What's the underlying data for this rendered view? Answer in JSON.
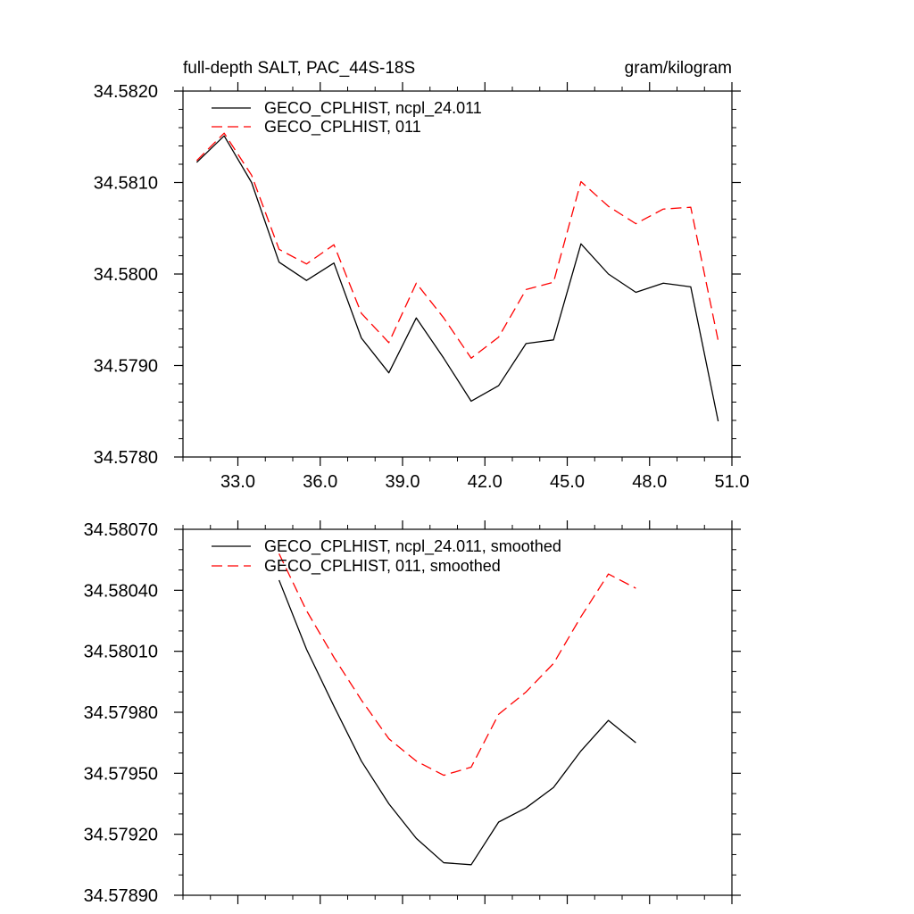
{
  "chart_data": [
    {
      "type": "line",
      "title_left": "full-depth SALT, PAC_44S-18S",
      "title_right": "gram/kilogram",
      "xlim": [
        31.0,
        51.0
      ],
      "ylim": [
        34.578,
        34.582
      ],
      "x_ticks": [
        33.0,
        36.0,
        39.0,
        42.0,
        45.0,
        48.0,
        51.0
      ],
      "x_tick_labels": [
        "33.0",
        "36.0",
        "39.0",
        "42.0",
        "45.0",
        "48.0",
        "51.0"
      ],
      "y_ticks": [
        34.578,
        34.579,
        34.58,
        34.581,
        34.582
      ],
      "y_tick_labels": [
        "34.5780",
        "34.5790",
        "34.5800",
        "34.5810",
        "34.5820"
      ],
      "x": [
        31.5,
        32.5,
        33.5,
        34.5,
        35.5,
        36.5,
        37.5,
        38.5,
        39.5,
        40.5,
        41.5,
        42.5,
        43.5,
        44.5,
        45.5,
        46.5,
        47.5,
        48.5,
        49.5,
        50.5
      ],
      "series": [
        {
          "name": "GECO_CPLHIST, ncpl_24.011",
          "color": "#000000",
          "dash": "solid",
          "values": [
            34.58122,
            34.58151,
            34.581,
            34.58013,
            34.57993,
            34.58012,
            34.5793,
            34.57892,
            34.57952,
            34.57908,
            34.57861,
            34.57878,
            34.57924,
            34.57928,
            34.58033,
            34.58,
            34.5798,
            34.5799,
            34.57986,
            34.57839
          ]
        },
        {
          "name": "GECO_CPLHIST, 011",
          "color": "#ff0000",
          "dash": "dashed",
          "values": [
            34.58124,
            34.58154,
            34.58108,
            34.58027,
            34.58011,
            34.58032,
            34.57957,
            34.57925,
            34.5799,
            34.57952,
            34.57908,
            34.57931,
            34.57983,
            34.57991,
            34.58101,
            34.58074,
            34.58055,
            34.58071,
            34.58073,
            34.57927
          ]
        }
      ]
    },
    {
      "type": "line",
      "xlim": [
        31.0,
        51.0
      ],
      "ylim": [
        34.5789,
        34.5807
      ],
      "x_ticks": [
        33.0,
        36.0,
        39.0,
        42.0,
        45.0,
        48.0,
        51.0
      ],
      "y_ticks": [
        34.5789,
        34.5792,
        34.5795,
        34.5798,
        34.5801,
        34.5804,
        34.5807
      ],
      "y_tick_labels": [
        "34.57890",
        "34.57920",
        "34.57950",
        "34.57980",
        "34.58010",
        "34.58040",
        "34.58070"
      ],
      "x": [
        34.5,
        35.5,
        36.5,
        37.5,
        38.5,
        39.5,
        40.5,
        41.5,
        42.5,
        43.5,
        44.5,
        45.5,
        46.5,
        47.5
      ],
      "series": [
        {
          "name": "GECO_CPLHIST, ncpl_24.011, smoothed",
          "color": "#000000",
          "dash": "solid",
          "values": [
            34.58045,
            34.58011,
            34.57983,
            34.57956,
            34.57935,
            34.57918,
            34.57906,
            34.57905,
            34.57926,
            34.57933,
            34.57943,
            34.57961,
            34.57976,
            34.57965
          ]
        },
        {
          "name": "GECO_CPLHIST, 011, smoothed",
          "color": "#ff0000",
          "dash": "dashed",
          "values": [
            34.58058,
            34.5803,
            34.58007,
            34.57986,
            34.57967,
            34.57956,
            34.57949,
            34.57953,
            34.57979,
            34.5799,
            34.58004,
            34.58027,
            34.58048,
            34.58041
          ]
        }
      ]
    }
  ]
}
